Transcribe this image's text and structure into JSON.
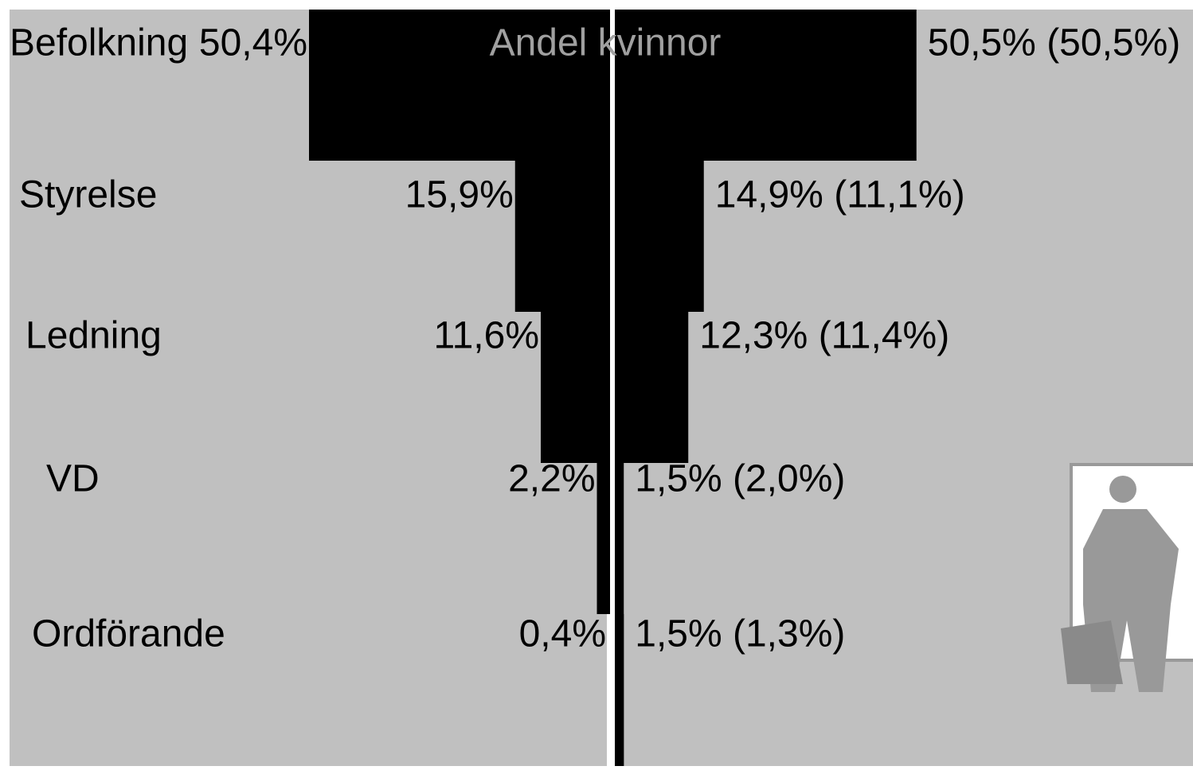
{
  "chart_data": {
    "type": "butterfly",
    "title": "Andel kvinnor",
    "categories": [
      "Befolkning",
      "Styrelse",
      "Ledning",
      "VD",
      "Ordförande"
    ],
    "series": [
      {
        "color": "#000000",
        "values": [
          50.4,
          15.9,
          11.6,
          2.2,
          0.4
        ],
        "value_labels": [
          "50,4%",
          "15,9%",
          "11,6%",
          "2,2%",
          "0,4%"
        ]
      },
      {
        "color": "#000000",
        "values": [
          50.5,
          14.9,
          12.3,
          1.5,
          1.5
        ],
        "value_labels": [
          "50,5% (50,5%)",
          "14,9% (11,1%)",
          "12,3% (11,4%)",
          "1,5% (2,0%)",
          "1,5% (1,3%)"
        ]
      }
    ]
  }
}
